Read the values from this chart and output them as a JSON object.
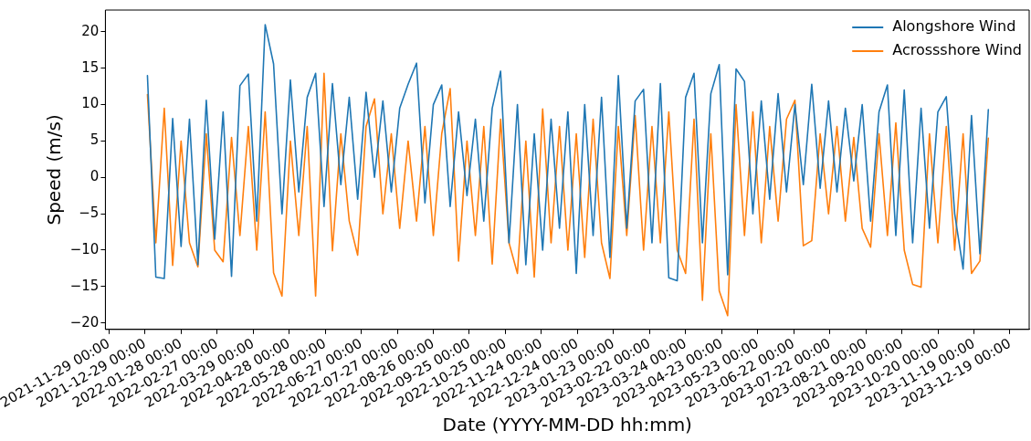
{
  "chart_data": {
    "type": "line",
    "xlabel": "Date (YYYY-MM-DD hh:mm)",
    "ylabel": "Speed (m/s)",
    "legend": "top right",
    "xlim": [
      "2021-11-26",
      "2024-01-04"
    ],
    "ylim": [
      -20.9,
      23.0
    ],
    "xticks": [
      {
        "value": "2021-11-29",
        "label": "2021-11-29 00:00"
      },
      {
        "value": "2021-12-29",
        "label": "2021-12-29 00:00"
      },
      {
        "value": "2022-01-28",
        "label": "2022-01-28 00:00"
      },
      {
        "value": "2022-02-27",
        "label": "2022-02-27 00:00"
      },
      {
        "value": "2022-03-29",
        "label": "2022-03-29 00:00"
      },
      {
        "value": "2022-04-28",
        "label": "2022-04-28 00:00"
      },
      {
        "value": "2022-05-28",
        "label": "2022-05-28 00:00"
      },
      {
        "value": "2022-06-27",
        "label": "2022-06-27 00:00"
      },
      {
        "value": "2022-07-27",
        "label": "2022-07-27 00:00"
      },
      {
        "value": "2022-08-26",
        "label": "2022-08-26 00:00"
      },
      {
        "value": "2022-09-25",
        "label": "2022-09-25 00:00"
      },
      {
        "value": "2022-10-25",
        "label": "2022-10-25 00:00"
      },
      {
        "value": "2022-11-24",
        "label": "2022-11-24 00:00"
      },
      {
        "value": "2022-12-24",
        "label": "2022-12-24 00:00"
      },
      {
        "value": "2023-01-23",
        "label": "2023-01-23 00:00"
      },
      {
        "value": "2023-02-22",
        "label": "2023-02-22 00:00"
      },
      {
        "value": "2023-03-24",
        "label": "2023-03-24 00:00"
      },
      {
        "value": "2023-04-23",
        "label": "2023-04-23 00:00"
      },
      {
        "value": "2023-05-23",
        "label": "2023-05-23 00:00"
      },
      {
        "value": "2023-06-22",
        "label": "2023-06-22 00:00"
      },
      {
        "value": "2023-07-22",
        "label": "2023-07-22 00:00"
      },
      {
        "value": "2023-08-21",
        "label": "2023-08-21 00:00"
      },
      {
        "value": "2023-09-20",
        "label": "2023-09-20 00:00"
      },
      {
        "value": "2023-10-20",
        "label": "2023-10-20 00:00"
      },
      {
        "value": "2023-11-19",
        "label": "2023-11-19 00:00"
      },
      {
        "value": "2023-12-19",
        "label": "2023-12-19 00:00"
      }
    ],
    "yticks": [
      {
        "value": -20,
        "label": "−20"
      },
      {
        "value": -15,
        "label": "−15"
      },
      {
        "value": -10,
        "label": "−10"
      },
      {
        "value": -5,
        "label": "−5"
      },
      0,
      5,
      10,
      15,
      20
    ],
    "x": [
      "2021-12-31",
      "2022-01-07",
      "2022-01-14",
      "2022-01-21",
      "2022-01-28",
      "2022-02-04",
      "2022-02-11",
      "2022-02-18",
      "2022-02-25",
      "2022-03-04",
      "2022-03-11",
      "2022-03-18",
      "2022-03-25",
      "2022-04-01",
      "2022-04-08",
      "2022-04-15",
      "2022-04-22",
      "2022-04-29",
      "2022-05-06",
      "2022-05-13",
      "2022-05-20",
      "2022-05-27",
      "2022-06-03",
      "2022-06-10",
      "2022-06-17",
      "2022-06-24",
      "2022-07-01",
      "2022-07-08",
      "2022-07-15",
      "2022-07-22",
      "2022-07-29",
      "2022-08-05",
      "2022-08-12",
      "2022-08-19",
      "2022-08-26",
      "2022-09-02",
      "2022-09-09",
      "2022-09-16",
      "2022-09-23",
      "2022-09-30",
      "2022-10-07",
      "2022-10-14",
      "2022-10-21",
      "2022-10-28",
      "2022-11-04",
      "2022-11-11",
      "2022-11-18",
      "2022-11-25",
      "2022-12-02",
      "2022-12-09",
      "2022-12-16",
      "2022-12-23",
      "2022-12-30",
      "2023-01-06",
      "2023-01-13",
      "2023-01-20",
      "2023-01-27",
      "2023-02-03",
      "2023-02-10",
      "2023-02-17",
      "2023-02-24",
      "2023-03-03",
      "2023-03-10",
      "2023-03-17",
      "2023-03-24",
      "2023-03-31",
      "2023-04-07",
      "2023-04-14",
      "2023-04-21",
      "2023-04-28",
      "2023-05-05",
      "2023-05-12",
      "2023-05-19",
      "2023-05-26",
      "2023-06-02",
      "2023-06-09",
      "2023-06-16",
      "2023-06-23",
      "2023-06-30",
      "2023-07-07",
      "2023-07-14",
      "2023-07-21",
      "2023-07-28",
      "2023-08-04",
      "2023-08-11",
      "2023-08-18",
      "2023-08-25",
      "2023-09-01",
      "2023-09-08",
      "2023-09-15",
      "2023-09-22",
      "2023-09-29",
      "2023-10-06",
      "2023-10-13",
      "2023-10-20",
      "2023-10-27",
      "2023-11-03",
      "2023-11-10",
      "2023-11-17",
      "2023-11-24",
      "2023-12-01"
    ],
    "series": [
      {
        "name": "Alongshore Wind",
        "color": "#1f77b4",
        "values": [
          14.0,
          -13.7,
          -13.9,
          8.1,
          -9.5,
          8.0,
          -12.0,
          10.6,
          -8.5,
          9.0,
          -13.6,
          12.6,
          14.2,
          -6.0,
          21.0,
          15.6,
          -5.0,
          13.4,
          -2.0,
          11.0,
          14.3,
          -4.0,
          12.9,
          -1.0,
          11.0,
          -3.0,
          11.7,
          0.0,
          10.5,
          -2.0,
          9.5,
          12.8,
          15.7,
          -3.5,
          10.0,
          12.7,
          -4.0,
          9.0,
          -2.5,
          8.0,
          -6.0,
          9.5,
          14.6,
          -9.0,
          10.0,
          -12.0,
          6.0,
          -10.0,
          8.0,
          -7.0,
          9.0,
          -13.2,
          10.0,
          -8.0,
          11.0,
          -11.0,
          14.0,
          -7.0,
          10.5,
          12.1,
          -9.0,
          12.9,
          -13.8,
          -14.2,
          11.0,
          14.3,
          -9.0,
          11.5,
          15.5,
          -13.4,
          14.9,
          13.2,
          -5.0,
          10.5,
          -3.0,
          11.5,
          -2.0,
          10.0,
          -1.0,
          12.8,
          -1.5,
          10.5,
          -2.0,
          9.5,
          -0.5,
          10.0,
          -6.0,
          9.0,
          12.7,
          -8.0,
          12.0,
          -9.0,
          9.5,
          -7.0,
          9.0,
          11.1,
          -5.0,
          -12.6,
          8.5,
          -10.5,
          9.3
        ]
      },
      {
        "name": "Acrossshore Wind",
        "color": "#ff7f0e",
        "values": [
          11.4,
          -9.0,
          9.5,
          -12.1,
          5.0,
          -9.0,
          -12.3,
          6.0,
          -10.0,
          -11.6,
          5.5,
          -8.0,
          7.0,
          -10.0,
          9.0,
          -13.1,
          -16.3,
          5.0,
          -8.0,
          7.0,
          -16.3,
          14.3,
          -10.1,
          6.0,
          -6.0,
          -10.7,
          7.0,
          10.8,
          -5.0,
          6.0,
          -7.0,
          5.0,
          -6.0,
          7.0,
          -8.0,
          6.0,
          12.2,
          -11.5,
          5.0,
          -8.0,
          7.0,
          -11.9,
          8.0,
          -9.0,
          -13.2,
          5.0,
          -13.7,
          9.4,
          -9.0,
          7.0,
          -10.0,
          6.0,
          -11.0,
          8.0,
          -9.0,
          -13.9,
          7.0,
          -8.0,
          8.5,
          -10.0,
          7.0,
          -9.0,
          9.0,
          -10.0,
          -13.2,
          8.0,
          -16.9,
          6.0,
          -15.6,
          -19.0,
          10.0,
          -8.0,
          9.0,
          -9.0,
          7.0,
          -6.0,
          8.0,
          10.6,
          -9.4,
          -8.7,
          6.0,
          -5.0,
          7.0,
          -6.0,
          5.5,
          -7.0,
          -9.6,
          6.0,
          -8.0,
          7.5,
          -10.0,
          -14.7,
          -15.1,
          6.0,
          -9.0,
          7.0,
          -10.0,
          6.0,
          -13.2,
          -11.5,
          5.4
        ]
      }
    ]
  }
}
